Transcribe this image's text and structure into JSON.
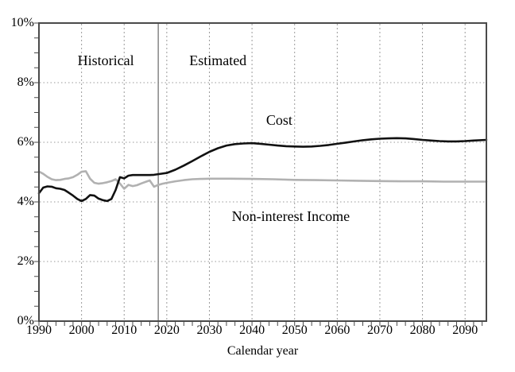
{
  "chart_data": {
    "type": "line",
    "title": "",
    "xlabel": "Calendar year",
    "ylabel": "",
    "x_range": [
      1990,
      2095
    ],
    "y_range": [
      0,
      10
    ],
    "grid": true,
    "legend_position": "inline-annotations",
    "y_ticks": [
      {
        "value": 0,
        "label": "0%"
      },
      {
        "value": 2,
        "label": "2%"
      },
      {
        "value": 4,
        "label": "4%"
      },
      {
        "value": 6,
        "label": "6%"
      },
      {
        "value": 8,
        "label": "8%"
      },
      {
        "value": 10,
        "label": "10%"
      }
    ],
    "y_minor_tick_step": 0.5,
    "x_ticks": [
      {
        "value": 1990,
        "label": "1990"
      },
      {
        "value": 2000,
        "label": "2000"
      },
      {
        "value": 2010,
        "label": "2010"
      },
      {
        "value": 2020,
        "label": "2020"
      },
      {
        "value": 2030,
        "label": "2030"
      },
      {
        "value": 2040,
        "label": "2040"
      },
      {
        "value": 2050,
        "label": "2050"
      },
      {
        "value": 2060,
        "label": "2060"
      },
      {
        "value": 2070,
        "label": "2070"
      },
      {
        "value": 2080,
        "label": "2080"
      },
      {
        "value": 2090,
        "label": "2090"
      }
    ],
    "x_minor_tick_step": 2,
    "h_gridlines": [
      2,
      4,
      6,
      8
    ],
    "v_gridlines": [
      2000,
      2010,
      2020,
      2030,
      2040,
      2050,
      2060,
      2070,
      2080,
      2090
    ],
    "historical_estimated_divider_year": 2018,
    "annotations": {
      "historical": {
        "text": "Historical",
        "x": 2005.7,
        "y": 8.75
      },
      "estimated": {
        "text": "Estimated",
        "x": 2032.0,
        "y": 8.75
      },
      "cost": {
        "text": "Cost",
        "x": 2046.4,
        "y": 6.75
      },
      "non_interest_income": {
        "text": "Non-interest Income",
        "x": 2049.1,
        "y": 3.51
      }
    },
    "series": [
      {
        "name": "Cost",
        "color": "#111111",
        "width": 2.6,
        "points": [
          [
            1990,
            4.29
          ],
          [
            1991,
            4.48
          ],
          [
            1992,
            4.52
          ],
          [
            1993,
            4.51
          ],
          [
            1994,
            4.46
          ],
          [
            1995,
            4.44
          ],
          [
            1996,
            4.4
          ],
          [
            1997,
            4.31
          ],
          [
            1998,
            4.21
          ],
          [
            1999,
            4.1
          ],
          [
            2000,
            4.03
          ],
          [
            2001,
            4.1
          ],
          [
            2002,
            4.23
          ],
          [
            2003,
            4.21
          ],
          [
            2004,
            4.11
          ],
          [
            2005,
            4.06
          ],
          [
            2006,
            4.03
          ],
          [
            2007,
            4.1
          ],
          [
            2008,
            4.4
          ],
          [
            2009,
            4.83
          ],
          [
            2010,
            4.79
          ],
          [
            2011,
            4.88
          ],
          [
            2012,
            4.9
          ],
          [
            2013,
            4.9
          ],
          [
            2014,
            4.9
          ],
          [
            2015,
            4.9
          ],
          [
            2016,
            4.9
          ],
          [
            2017,
            4.91
          ],
          [
            2018,
            4.93
          ],
          [
            2020,
            4.97
          ],
          [
            2022,
            5.08
          ],
          [
            2024,
            5.22
          ],
          [
            2026,
            5.37
          ],
          [
            2028,
            5.53
          ],
          [
            2030,
            5.68
          ],
          [
            2032,
            5.8
          ],
          [
            2034,
            5.89
          ],
          [
            2036,
            5.94
          ],
          [
            2038,
            5.96
          ],
          [
            2040,
            5.97
          ],
          [
            2042,
            5.95
          ],
          [
            2044,
            5.92
          ],
          [
            2046,
            5.89
          ],
          [
            2048,
            5.87
          ],
          [
            2050,
            5.86
          ],
          [
            2052,
            5.85
          ],
          [
            2054,
            5.86
          ],
          [
            2056,
            5.88
          ],
          [
            2058,
            5.91
          ],
          [
            2060,
            5.95
          ],
          [
            2062,
            5.99
          ],
          [
            2064,
            6.03
          ],
          [
            2066,
            6.07
          ],
          [
            2068,
            6.1
          ],
          [
            2070,
            6.12
          ],
          [
            2072,
            6.13
          ],
          [
            2074,
            6.14
          ],
          [
            2076,
            6.13
          ],
          [
            2078,
            6.11
          ],
          [
            2080,
            6.08
          ],
          [
            2082,
            6.06
          ],
          [
            2084,
            6.04
          ],
          [
            2086,
            6.03
          ],
          [
            2088,
            6.03
          ],
          [
            2090,
            6.04
          ],
          [
            2092,
            6.06
          ],
          [
            2095,
            6.08
          ]
        ]
      },
      {
        "name": "Non-interest Income",
        "color": "#b1b1b1",
        "width": 2.6,
        "points": [
          [
            1990,
            5.02
          ],
          [
            1991,
            4.94
          ],
          [
            1992,
            4.84
          ],
          [
            1993,
            4.76
          ],
          [
            1994,
            4.73
          ],
          [
            1995,
            4.74
          ],
          [
            1996,
            4.77
          ],
          [
            1997,
            4.79
          ],
          [
            1998,
            4.83
          ],
          [
            1999,
            4.91
          ],
          [
            2000,
            5.01
          ],
          [
            2001,
            5.03
          ],
          [
            2002,
            4.78
          ],
          [
            2003,
            4.64
          ],
          [
            2004,
            4.61
          ],
          [
            2005,
            4.63
          ],
          [
            2006,
            4.66
          ],
          [
            2007,
            4.7
          ],
          [
            2008,
            4.76
          ],
          [
            2009,
            4.62
          ],
          [
            2010,
            4.44
          ],
          [
            2011,
            4.57
          ],
          [
            2012,
            4.53
          ],
          [
            2013,
            4.56
          ],
          [
            2014,
            4.62
          ],
          [
            2015,
            4.67
          ],
          [
            2016,
            4.72
          ],
          [
            2017,
            4.51
          ],
          [
            2018,
            4.57
          ],
          [
            2019,
            4.61
          ],
          [
            2020,
            4.64
          ],
          [
            2022,
            4.69
          ],
          [
            2024,
            4.73
          ],
          [
            2026,
            4.76
          ],
          [
            2028,
            4.77
          ],
          [
            2030,
            4.78
          ],
          [
            2035,
            4.78
          ],
          [
            2040,
            4.77
          ],
          [
            2045,
            4.76
          ],
          [
            2050,
            4.74
          ],
          [
            2055,
            4.73
          ],
          [
            2060,
            4.72
          ],
          [
            2065,
            4.71
          ],
          [
            2070,
            4.7
          ],
          [
            2075,
            4.69
          ],
          [
            2080,
            4.69
          ],
          [
            2085,
            4.68
          ],
          [
            2090,
            4.68
          ],
          [
            2095,
            4.68
          ]
        ]
      }
    ],
    "colors": {
      "frame": "#4a4a4a",
      "gridline": "#9a9a9a",
      "divider": "#7d7d7d",
      "tick": "#4a4a4a",
      "text": "#000000",
      "background": "#ffffff"
    }
  }
}
